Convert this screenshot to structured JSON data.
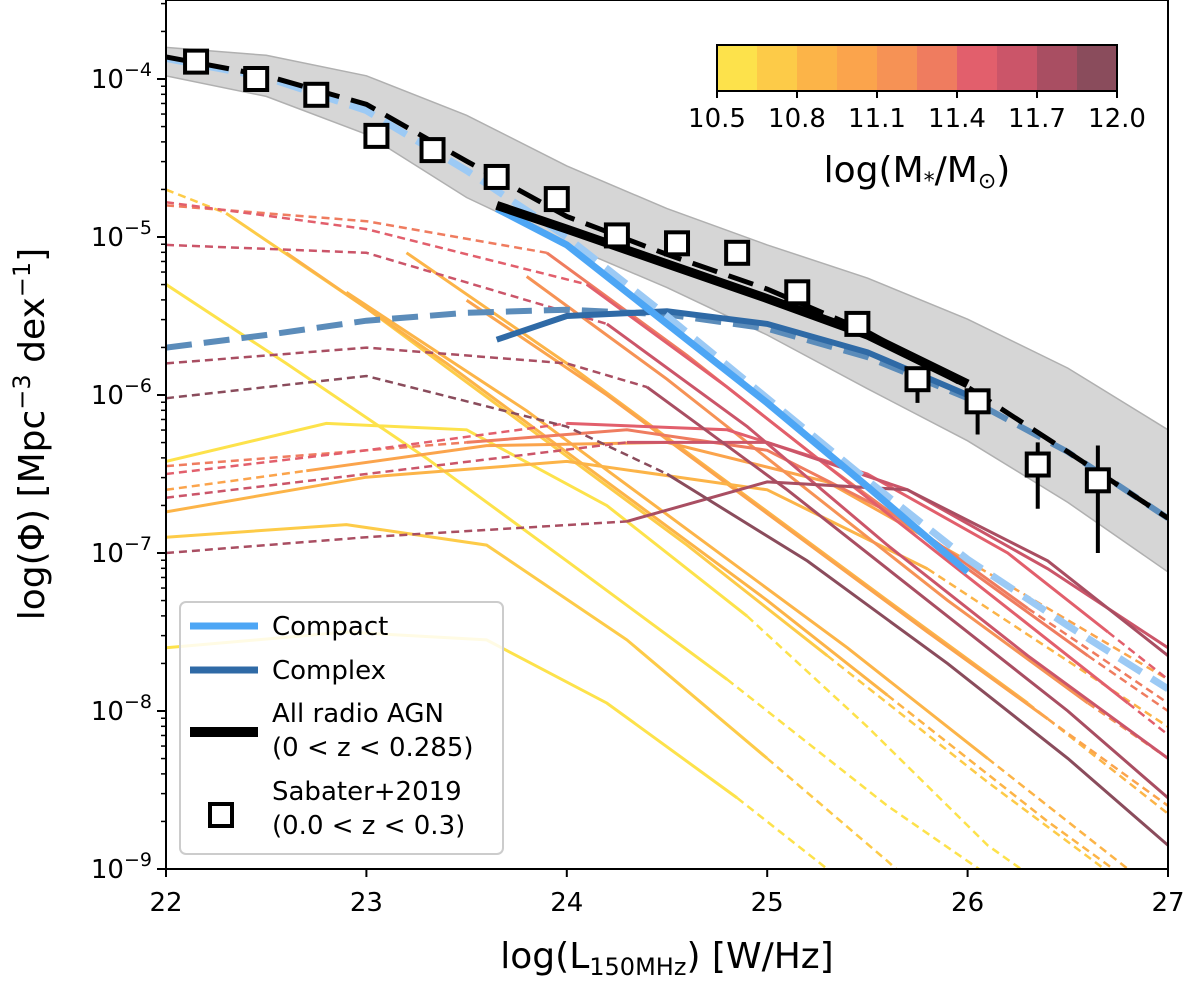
{
  "chart_data": {
    "type": "line",
    "xlabel_main": "log(L",
    "xlabel_sub": "150MHz",
    "xlabel_tail": ") [W/Hz]",
    "ylabel_main": "log(Φ) [Mpc",
    "ylabel_exp1": "−3",
    "ylabel_mid": " dex",
    "ylabel_exp2": "−1",
    "ylabel_tail": "]",
    "xlim": [
      22,
      27
    ],
    "ylim_log10": [
      -9,
      -3.5
    ],
    "y_scale": "log",
    "xticks": [
      "22",
      "23",
      "24",
      "25",
      "26",
      "27"
    ],
    "ytick_base": "10",
    "yticks": [
      "−9",
      "−8",
      "−7",
      "−6",
      "−5",
      "−4"
    ],
    "colorbar": {
      "label_main": "log(M",
      "label_sub1": "*",
      "label_mid": "/M",
      "label_sub2": "⊙",
      "label_tail": ")",
      "range": [
        10.5,
        12.0
      ],
      "ticks": [
        "10.5",
        "10.8",
        "11.1",
        "11.4",
        "11.7",
        "12.0"
      ],
      "colors": [
        "#fde24b",
        "#fdcb48",
        "#fcb448",
        "#fba44c",
        "#f69255",
        "#ef7c5f",
        "#e25f6c",
        "#cb5569",
        "#a94e62",
        "#8a4c5c"
      ],
      "placement": "top-right"
    },
    "legend": {
      "placement": "bottom-left",
      "entries": [
        {
          "label": "Compact",
          "label2": "",
          "color": "#4da6f5",
          "kind": "line"
        },
        {
          "label": "Complex",
          "label2": "",
          "color": "#2f6aa6",
          "kind": "line"
        },
        {
          "label": "All radio AGN",
          "label2": "(0 < z < 0.285)",
          "color": "#000000",
          "kind": "thick-line"
        },
        {
          "label": "Sabater+2019",
          "label2": "(0.0 < z < 0.3)",
          "color": "#000000",
          "kind": "square"
        }
      ]
    },
    "sabater_points": [
      {
        "x": 22.15,
        "y": -3.89
      },
      {
        "x": 22.45,
        "y": -4.0
      },
      {
        "x": 22.75,
        "y": -4.1
      },
      {
        "x": 23.05,
        "y": -4.36
      },
      {
        "x": 23.33,
        "y": -4.45
      },
      {
        "x": 23.65,
        "y": -4.62
      },
      {
        "x": 23.95,
        "y": -4.76
      },
      {
        "x": 24.25,
        "y": -4.99
      },
      {
        "x": 24.55,
        "y": -5.04
      },
      {
        "x": 24.85,
        "y": -5.1
      },
      {
        "x": 25.15,
        "y": -5.35
      },
      {
        "x": 25.45,
        "y": -5.55
      },
      {
        "x": 25.75,
        "y": -5.9,
        "err_lo": -6.05
      },
      {
        "x": 26.05,
        "y": -6.04,
        "err_lo": -6.25
      },
      {
        "x": 26.35,
        "y": -6.44,
        "err_lo": -6.72,
        "err_hi": -6.3
      },
      {
        "x": 26.65,
        "y": -6.54,
        "err_lo": -7.0,
        "err_hi": -6.32
      }
    ],
    "band": {
      "x": [
        22.0,
        22.5,
        23.0,
        23.5,
        24.0,
        24.5,
        25.0,
        25.5,
        26.0,
        26.5,
        27.0
      ],
      "upper": [
        -3.8,
        -3.85,
        -3.98,
        -4.23,
        -4.55,
        -4.82,
        -5.05,
        -5.26,
        -5.52,
        -5.83,
        -6.22
      ],
      "lower": [
        -3.98,
        -4.11,
        -4.35,
        -4.75,
        -5.05,
        -5.32,
        -5.62,
        -5.96,
        -6.29,
        -6.68,
        -7.12
      ],
      "color": "#d6d6d6"
    },
    "series": [
      {
        "name": "All radio AGN",
        "style": "solid",
        "width": 9,
        "color": "#000000",
        "x": [
          23.65,
          24.0,
          24.5,
          25.0,
          25.5,
          26.0
        ],
        "y": [
          -4.8,
          -4.95,
          -5.17,
          -5.39,
          -5.62,
          -5.93
        ]
      },
      {
        "name": "All radio AGN",
        "style": "dashed",
        "width": 5,
        "color": "#000000",
        "x": [
          22.0,
          22.5,
          23.0,
          23.5,
          24.0,
          24.5,
          25.0,
          25.5,
          26.0,
          26.5,
          27.0
        ],
        "y": [
          -3.86,
          -3.98,
          -4.16,
          -4.52,
          -4.87,
          -5.11,
          -5.33,
          -5.6,
          -5.95,
          -6.36,
          -6.78
        ]
      },
      {
        "name": "Compact",
        "style": "solid",
        "width": 7,
        "color": "#4da6f5",
        "x": [
          23.65,
          24.0,
          24.5,
          25.0,
          25.5,
          26.0
        ],
        "y": [
          -4.82,
          -5.05,
          -5.55,
          -6.05,
          -6.58,
          -7.12
        ]
      },
      {
        "name": "Compact",
        "style": "dashed",
        "width": 7,
        "color": "#9ccaf5",
        "x": [
          22.0,
          22.5,
          23.0,
          23.5,
          24.0,
          24.5,
          25.0,
          25.5,
          26.0,
          26.5,
          27.0
        ],
        "y": [
          -3.87,
          -3.99,
          -4.2,
          -4.58,
          -5.0,
          -5.5,
          -6.02,
          -6.54,
          -7.04,
          -7.46,
          -7.86
        ]
      },
      {
        "name": "Complex",
        "style": "solid",
        "width": 6,
        "color": "#2f6aa6",
        "x": [
          23.65,
          24.0,
          24.5,
          25.0,
          25.5,
          26.0
        ],
        "y": [
          -5.65,
          -5.5,
          -5.47,
          -5.55,
          -5.73,
          -6.0
        ]
      },
      {
        "name": "Complex",
        "style": "dashed",
        "width": 6,
        "color": "#5b8cba",
        "x": [
          22.0,
          22.5,
          23.0,
          23.5,
          24.0,
          24.5,
          25.0,
          25.5,
          26.0,
          26.5,
          27.0
        ],
        "y": [
          -5.7,
          -5.62,
          -5.53,
          -5.48,
          -5.46,
          -5.49,
          -5.58,
          -5.76,
          -6.02,
          -6.36,
          -6.78
        ]
      }
    ],
    "mass_curves": [
      {
        "m": 10.55,
        "seg": [
          [
            22.0,
            -6.42
          ],
          [
            22.8,
            -6.18
          ],
          [
            23.5,
            -6.22
          ],
          [
            24.2,
            -6.7
          ],
          [
            24.9,
            -7.4
          ]
        ],
        "dash": [
          [
            24.9,
            -7.4
          ],
          [
            25.5,
            -8.1
          ],
          [
            26.1,
            -8.85
          ],
          [
            26.6,
            -9.3
          ]
        ]
      },
      {
        "m": 10.55,
        "seg": [
          [
            22.0,
            -7.6
          ],
          [
            22.9,
            -7.5
          ],
          [
            23.6,
            -7.55
          ],
          [
            24.2,
            -7.95
          ],
          [
            24.85,
            -8.55
          ]
        ],
        "dash": [
          [
            24.85,
            -8.55
          ],
          [
            25.5,
            -9.2
          ]
        ]
      },
      {
        "m": 10.6,
        "seg": [
          [
            22.0,
            -5.3
          ],
          [
            22.6,
            -5.8
          ],
          [
            23.3,
            -6.4
          ],
          [
            24.0,
            -7.05
          ],
          [
            24.8,
            -7.8
          ]
        ],
        "dash": [
          [
            24.8,
            -7.8
          ],
          [
            25.6,
            -8.6
          ],
          [
            26.4,
            -9.3
          ]
        ]
      },
      {
        "m": 10.65,
        "seg": [
          [
            22.0,
            -6.9
          ],
          [
            22.9,
            -6.82
          ],
          [
            23.6,
            -6.95
          ],
          [
            24.3,
            -7.55
          ],
          [
            25.0,
            -8.3
          ]
        ],
        "dash": [
          [
            25.0,
            -8.3
          ],
          [
            25.6,
            -8.95
          ],
          [
            26.0,
            -9.4
          ]
        ]
      },
      {
        "m": 10.75,
        "seg": [
          [
            22.3,
            -4.85
          ],
          [
            23.0,
            -5.45
          ],
          [
            23.8,
            -6.2
          ],
          [
            24.6,
            -6.95
          ],
          [
            25.3,
            -7.65
          ]
        ],
        "dash": [
          [
            22.0,
            -4.7
          ],
          [
            22.3,
            -4.85
          ]
        ],
        "dash2": [
          [
            25.3,
            -7.65
          ],
          [
            26.1,
            -8.45
          ],
          [
            27.0,
            -9.3
          ]
        ]
      },
      {
        "m": 10.8,
        "seg": [
          [
            22.6,
            -5.1
          ],
          [
            23.4,
            -5.8
          ],
          [
            24.2,
            -6.55
          ],
          [
            25.0,
            -7.3
          ],
          [
            25.6,
            -7.9
          ]
        ],
        "dash": [
          [
            25.6,
            -7.9
          ],
          [
            26.4,
            -8.7
          ],
          [
            27.0,
            -9.25
          ]
        ]
      },
      {
        "m": 10.9,
        "seg": [
          [
            22.9,
            -5.35
          ],
          [
            23.8,
            -6.1
          ],
          [
            24.6,
            -6.85
          ],
          [
            25.4,
            -7.6
          ],
          [
            26.1,
            -8.3
          ]
        ],
        "dash": [
          [
            26.1,
            -8.3
          ],
          [
            26.8,
            -9.0
          ]
        ]
      },
      {
        "m": 10.95,
        "seg": [
          [
            23.2,
            -5.1
          ],
          [
            24.0,
            -5.8
          ],
          [
            24.8,
            -6.55
          ],
          [
            25.6,
            -7.3
          ],
          [
            26.3,
            -7.95
          ]
        ],
        "dash": [
          [
            26.3,
            -7.95
          ],
          [
            27.0,
            -8.65
          ]
        ]
      },
      {
        "m": 11.0,
        "seg": [
          [
            23.5,
            -5.4
          ],
          [
            24.2,
            -6.0
          ],
          [
            25.0,
            -6.75
          ],
          [
            25.8,
            -7.5
          ],
          [
            26.4,
            -8.05
          ]
        ],
        "dash": [
          [
            26.4,
            -8.05
          ],
          [
            27.0,
            -8.6
          ]
        ]
      },
      {
        "m": 10.95,
        "seg": [
          [
            22.0,
            -6.74
          ],
          [
            23.0,
            -6.52
          ],
          [
            24.0,
            -6.42
          ],
          [
            25.0,
            -6.6
          ],
          [
            25.8,
            -7.1
          ]
        ],
        "dash": [
          [
            25.8,
            -7.1
          ],
          [
            26.4,
            -7.6
          ],
          [
            27.0,
            -8.1
          ]
        ]
      },
      {
        "m": 11.1,
        "seg": [
          [
            22.7,
            -6.48
          ],
          [
            23.6,
            -6.32
          ],
          [
            24.5,
            -6.3
          ],
          [
            25.3,
            -6.55
          ],
          [
            26.0,
            -7.05
          ]
        ],
        "dash": [
          [
            22.0,
            -6.6
          ],
          [
            22.7,
            -6.48
          ]
        ],
        "dash2": [
          [
            26.0,
            -7.05
          ],
          [
            27.0,
            -7.8
          ]
        ]
      },
      {
        "m": 11.2,
        "seg": [
          [
            23.8,
            -5.25
          ],
          [
            24.5,
            -5.9
          ],
          [
            25.2,
            -6.6
          ],
          [
            25.9,
            -7.3
          ],
          [
            26.6,
            -7.95
          ]
        ],
        "dash": [
          [
            26.6,
            -7.95
          ],
          [
            27.0,
            -8.3
          ]
        ]
      },
      {
        "m": 11.25,
        "seg": [
          [
            23.5,
            -6.3
          ],
          [
            24.3,
            -6.22
          ],
          [
            25.0,
            -6.35
          ],
          [
            25.7,
            -6.8
          ],
          [
            26.3,
            -7.35
          ]
        ],
        "dash": [
          [
            22.0,
            -6.45
          ],
          [
            23.5,
            -6.3
          ]
        ],
        "dash2": [
          [
            26.3,
            -7.35
          ],
          [
            27.0,
            -7.95
          ]
        ]
      },
      {
        "m": 11.3,
        "seg": [
          [
            23.9,
            -5.1
          ],
          [
            24.6,
            -5.75
          ],
          [
            25.3,
            -6.45
          ],
          [
            26.0,
            -7.1
          ],
          [
            26.6,
            -7.65
          ]
        ],
        "dash": [
          [
            22.0,
            -4.8
          ],
          [
            23.0,
            -4.9
          ],
          [
            23.9,
            -5.1
          ]
        ],
        "dash2": [
          [
            26.6,
            -7.65
          ],
          [
            27.0,
            -8.0
          ]
        ]
      },
      {
        "m": 11.4,
        "seg": [
          [
            24.0,
            -6.18
          ],
          [
            24.8,
            -6.22
          ],
          [
            25.5,
            -6.5
          ],
          [
            26.2,
            -7.0
          ],
          [
            26.7,
            -7.5
          ]
        ],
        "dash": [
          [
            22.0,
            -6.5
          ],
          [
            23.0,
            -6.35
          ],
          [
            24.0,
            -6.18
          ]
        ],
        "dash2": [
          [
            26.7,
            -7.5
          ],
          [
            27.0,
            -7.8
          ]
        ]
      },
      {
        "m": 11.45,
        "seg": [
          [
            24.1,
            -5.3
          ],
          [
            24.8,
            -5.95
          ],
          [
            25.5,
            -6.65
          ],
          [
            26.2,
            -7.35
          ],
          [
            26.8,
            -7.95
          ]
        ],
        "dash": [
          [
            22.0,
            -4.78
          ],
          [
            23.0,
            -4.95
          ],
          [
            24.1,
            -5.3
          ]
        ],
        "dash2": [
          [
            26.8,
            -7.95
          ],
          [
            27.0,
            -8.15
          ]
        ]
      },
      {
        "m": 11.55,
        "seg": [
          [
            24.2,
            -5.55
          ],
          [
            24.9,
            -6.2
          ],
          [
            25.6,
            -6.95
          ],
          [
            26.3,
            -7.65
          ],
          [
            27.0,
            -8.3
          ]
        ],
        "dash": [
          [
            22.0,
            -5.05
          ],
          [
            23.0,
            -5.1
          ],
          [
            24.2,
            -5.55
          ]
        ]
      },
      {
        "m": 11.6,
        "seg": [
          [
            24.3,
            -6.3
          ],
          [
            25.0,
            -6.3
          ],
          [
            25.7,
            -6.6
          ],
          [
            26.4,
            -7.1
          ],
          [
            27.0,
            -7.6
          ]
        ],
        "dash": [
          [
            22.0,
            -6.65
          ],
          [
            23.0,
            -6.5
          ],
          [
            24.3,
            -6.3
          ]
        ]
      },
      {
        "m": 11.8,
        "seg": [
          [
            24.3,
            -6.8
          ],
          [
            25.0,
            -6.55
          ],
          [
            25.7,
            -6.6
          ],
          [
            26.4,
            -7.05
          ],
          [
            27.0,
            -7.65
          ]
        ],
        "dash": [
          [
            22.0,
            -7.0
          ],
          [
            23.0,
            -6.9
          ],
          [
            24.3,
            -6.8
          ]
        ]
      },
      {
        "m": 11.85,
        "seg": [
          [
            24.4,
            -5.95
          ],
          [
            25.1,
            -6.6
          ],
          [
            25.8,
            -7.3
          ],
          [
            26.5,
            -8.0
          ],
          [
            27.0,
            -8.55
          ]
        ],
        "dash": [
          [
            22.0,
            -5.8
          ],
          [
            23.0,
            -5.7
          ],
          [
            24.0,
            -5.8
          ],
          [
            24.4,
            -5.95
          ]
        ]
      },
      {
        "m": 11.9,
        "seg": [
          [
            24.5,
            -6.5
          ],
          [
            25.2,
            -7.05
          ],
          [
            25.9,
            -7.7
          ],
          [
            26.5,
            -8.3
          ],
          [
            27.0,
            -8.85
          ]
        ],
        "dash": [
          [
            22.0,
            -6.02
          ],
          [
            23.0,
            -5.88
          ],
          [
            24.0,
            -6.2
          ],
          [
            24.5,
            -6.5
          ]
        ]
      }
    ]
  }
}
